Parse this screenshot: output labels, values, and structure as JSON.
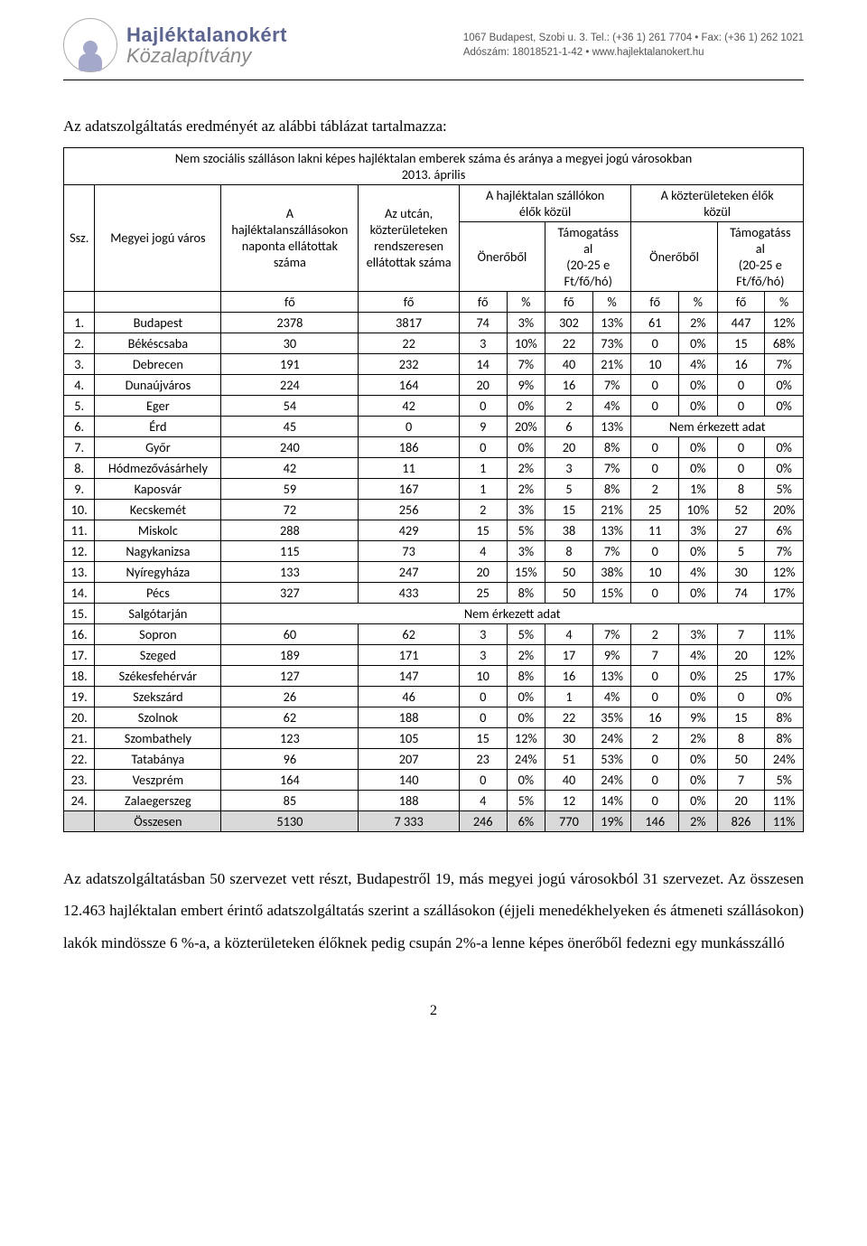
{
  "letterhead": {
    "org_line1": "Hajléktalanokért",
    "org_line2": "Közalapítvány",
    "contact_line1": "1067 Budapest, Szobi u. 3.  Tel.: (+36 1) 261 7704 • Fax: (+36 1) 262 1021",
    "contact_line2": "Adószám: 18018521-1-42 • www.hajlektalanokert.hu"
  },
  "intro": "Az adatszolgáltatás eredményét az alábbi táblázat tartalmazza:",
  "caption": {
    "line1": "Nem szociális szálláson lakni képes hajléktalan emberek száma és aránya a megyei jogú városokban",
    "line2": "2013. április"
  },
  "head": {
    "ssz": "Ssz.",
    "city": "Megyei jogú város",
    "colA": "A\nhajléktalanszállásokon\nnaponta ellátottak\nszáma",
    "colB": "Az utcán,\nközterületeken\nrendszeresen\nellátottak száma",
    "groupC": "A hajléktalan szállókon\nélők közül",
    "groupD": "A közterületeken élők\nközül",
    "sub_on": "Önerőből",
    "sub_tam": "Támogatáss\nal\n(20-25 e\nFt/fő/hó)",
    "unit_fo": "fő",
    "unit_pct": "%"
  },
  "rows": [
    {
      "n": "1.",
      "city": "Budapest",
      "a": "2378",
      "b": "3817",
      "c1": "74",
      "c1p": "3%",
      "c2": "302",
      "c2p": "13%",
      "d1": "61",
      "d1p": "2%",
      "d2": "447",
      "d2p": "12%"
    },
    {
      "n": "2.",
      "city": "Békéscsaba",
      "a": "30",
      "b": "22",
      "c1": "3",
      "c1p": "10%",
      "c2": "22",
      "c2p": "73%",
      "d1": "0",
      "d1p": "0%",
      "d2": "15",
      "d2p": "68%"
    },
    {
      "n": "3.",
      "city": "Debrecen",
      "a": "191",
      "b": "232",
      "c1": "14",
      "c1p": "7%",
      "c2": "40",
      "c2p": "21%",
      "d1": "10",
      "d1p": "4%",
      "d2": "16",
      "d2p": "7%"
    },
    {
      "n": "4.",
      "city": "Dunaújváros",
      "a": "224",
      "b": "164",
      "c1": "20",
      "c1p": "9%",
      "c2": "16",
      "c2p": "7%",
      "d1": "0",
      "d1p": "0%",
      "d2": "0",
      "d2p": "0%"
    },
    {
      "n": "5.",
      "city": "Eger",
      "a": "54",
      "b": "42",
      "c1": "0",
      "c1p": "0%",
      "c2": "2",
      "c2p": "4%",
      "d1": "0",
      "d1p": "0%",
      "d2": "0",
      "d2p": "0%"
    },
    {
      "n": "6.",
      "city": "Érd",
      "a": "45",
      "b": "0",
      "c1": "9",
      "c1p": "20%",
      "c2": "6",
      "c2p": "13%",
      "nodata_d": "Nem érkezett adat"
    },
    {
      "n": "7.",
      "city": "Győr",
      "a": "240",
      "b": "186",
      "c1": "0",
      "c1p": "0%",
      "c2": "20",
      "c2p": "8%",
      "d1": "0",
      "d1p": "0%",
      "d2": "0",
      "d2p": "0%"
    },
    {
      "n": "8.",
      "city": "Hódmezővásárhely",
      "a": "42",
      "b": "11",
      "c1": "1",
      "c1p": "2%",
      "c2": "3",
      "c2p": "7%",
      "d1": "0",
      "d1p": "0%",
      "d2": "0",
      "d2p": "0%"
    },
    {
      "n": "9.",
      "city": "Kaposvár",
      "a": "59",
      "b": "167",
      "c1": "1",
      "c1p": "2%",
      "c2": "5",
      "c2p": "8%",
      "d1": "2",
      "d1p": "1%",
      "d2": "8",
      "d2p": "5%"
    },
    {
      "n": "10.",
      "city": "Kecskemét",
      "a": "72",
      "b": "256",
      "c1": "2",
      "c1p": "3%",
      "c2": "15",
      "c2p": "21%",
      "d1": "25",
      "d1p": "10%",
      "d2": "52",
      "d2p": "20%"
    },
    {
      "n": "11.",
      "city": "Miskolc",
      "a": "288",
      "b": "429",
      "c1": "15",
      "c1p": "5%",
      "c2": "38",
      "c2p": "13%",
      "d1": "11",
      "d1p": "3%",
      "d2": "27",
      "d2p": "6%"
    },
    {
      "n": "12.",
      "city": "Nagykanizsa",
      "a": "115",
      "b": "73",
      "c1": "4",
      "c1p": "3%",
      "c2": "8",
      "c2p": "7%",
      "d1": "0",
      "d1p": "0%",
      "d2": "5",
      "d2p": "7%"
    },
    {
      "n": "13.",
      "city": "Nyíregyháza",
      "a": "133",
      "b": "247",
      "c1": "20",
      "c1p": "15%",
      "c2": "50",
      "c2p": "38%",
      "d1": "10",
      "d1p": "4%",
      "d2": "30",
      "d2p": "12%"
    },
    {
      "n": "14.",
      "city": "Pécs",
      "a": "327",
      "b": "433",
      "c1": "25",
      "c1p": "8%",
      "c2": "50",
      "c2p": "15%",
      "d1": "0",
      "d1p": "0%",
      "d2": "74",
      "d2p": "17%"
    },
    {
      "n": "15.",
      "city": "Salgótarján",
      "nodata_all": "Nem érkezett adat"
    },
    {
      "n": "16.",
      "city": "Sopron",
      "a": "60",
      "b": "62",
      "c1": "3",
      "c1p": "5%",
      "c2": "4",
      "c2p": "7%",
      "d1": "2",
      "d1p": "3%",
      "d2": "7",
      "d2p": "11%"
    },
    {
      "n": "17.",
      "city": "Szeged",
      "a": "189",
      "b": "171",
      "c1": "3",
      "c1p": "2%",
      "c2": "17",
      "c2p": "9%",
      "d1": "7",
      "d1p": "4%",
      "d2": "20",
      "d2p": "12%"
    },
    {
      "n": "18.",
      "city": "Székesfehérvár",
      "a": "127",
      "b": "147",
      "c1": "10",
      "c1p": "8%",
      "c2": "16",
      "c2p": "13%",
      "d1": "0",
      "d1p": "0%",
      "d2": "25",
      "d2p": "17%"
    },
    {
      "n": "19.",
      "city": "Szekszárd",
      "a": "26",
      "b": "46",
      "c1": "0",
      "c1p": "0%",
      "c2": "1",
      "c2p": "4%",
      "d1": "0",
      "d1p": "0%",
      "d2": "0",
      "d2p": "0%"
    },
    {
      "n": "20.",
      "city": "Szolnok",
      "a": "62",
      "b": "188",
      "c1": "0",
      "c1p": "0%",
      "c2": "22",
      "c2p": "35%",
      "d1": "16",
      "d1p": "9%",
      "d2": "15",
      "d2p": "8%"
    },
    {
      "n": "21.",
      "city": "Szombathely",
      "a": "123",
      "b": "105",
      "c1": "15",
      "c1p": "12%",
      "c2": "30",
      "c2p": "24%",
      "d1": "2",
      "d1p": "2%",
      "d2": "8",
      "d2p": "8%"
    },
    {
      "n": "22.",
      "city": "Tatabánya",
      "a": "96",
      "b": "207",
      "c1": "23",
      "c1p": "24%",
      "c2": "51",
      "c2p": "53%",
      "d1": "0",
      "d1p": "0%",
      "d2": "50",
      "d2p": "24%"
    },
    {
      "n": "23.",
      "city": "Veszprém",
      "a": "164",
      "b": "140",
      "c1": "0",
      "c1p": "0%",
      "c2": "40",
      "c2p": "24%",
      "d1": "0",
      "d1p": "0%",
      "d2": "7",
      "d2p": "5%"
    },
    {
      "n": "24.",
      "city": "Zalaegerszeg",
      "a": "85",
      "b": "188",
      "c1": "4",
      "c1p": "5%",
      "c2": "12",
      "c2p": "14%",
      "d1": "0",
      "d1p": "0%",
      "d2": "20",
      "d2p": "11%"
    }
  ],
  "total": {
    "label": "Összesen",
    "a": "5130",
    "b": "7 333",
    "c1": "246",
    "c1p": "6%",
    "c2": "770",
    "c2p": "19%",
    "d1": "146",
    "d1p": "2%",
    "d2": "826",
    "d2p": "11%"
  },
  "paragraph": "Az adatszolgáltatásban 50 szervezet vett részt, Budapestről 19, más megyei jogú városokból 31 szervezet. Az összesen 12.463 hajléktalan embert érintő adatszolgáltatás szerint a szállásokon (éjjeli menedékhelyeken és átmeneti szállásokon) lakók mindössze 6 %-a, a közterületeken élőknek pedig csupán 2%-a lenne képes önerőből fedezni egy munkásszálló",
  "pagenum": "2",
  "style": {
    "total_bg": "#d9d9d9",
    "border_color": "#000000",
    "table_font": "Calibri, Arial, sans-serif",
    "body_font": "Times New Roman, Times, serif"
  }
}
